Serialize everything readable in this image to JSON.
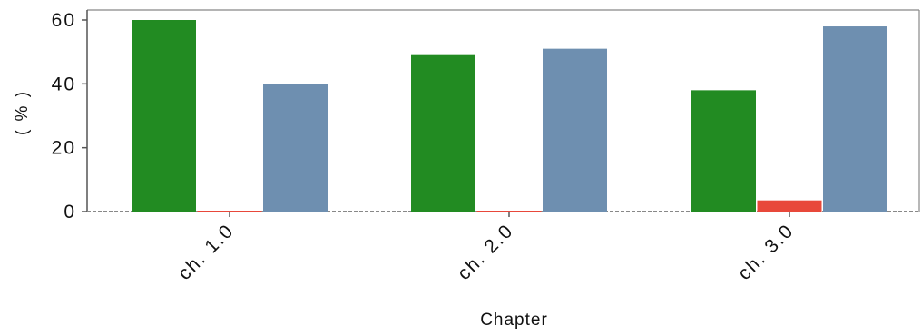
{
  "chart_data": {
    "type": "bar",
    "categories": [
      "ch. 1.0",
      "ch. 2.0",
      "ch. 3.0"
    ],
    "series": [
      {
        "name": "",
        "color": "#228B22",
        "values": [
          60,
          49,
          38
        ]
      },
      {
        "name": "",
        "color": "#E8483A",
        "values": [
          0.2,
          0.2,
          3.5
        ]
      },
      {
        "name": "",
        "color": "#6E8FB0",
        "values": [
          40,
          51,
          58
        ]
      }
    ],
    "title": "",
    "xlabel": "Chapter",
    "ylabel": "( % )",
    "ylim": [
      0,
      60
    ],
    "yticks": [
      0,
      20,
      40,
      60
    ],
    "grid": false,
    "legend": "none"
  }
}
